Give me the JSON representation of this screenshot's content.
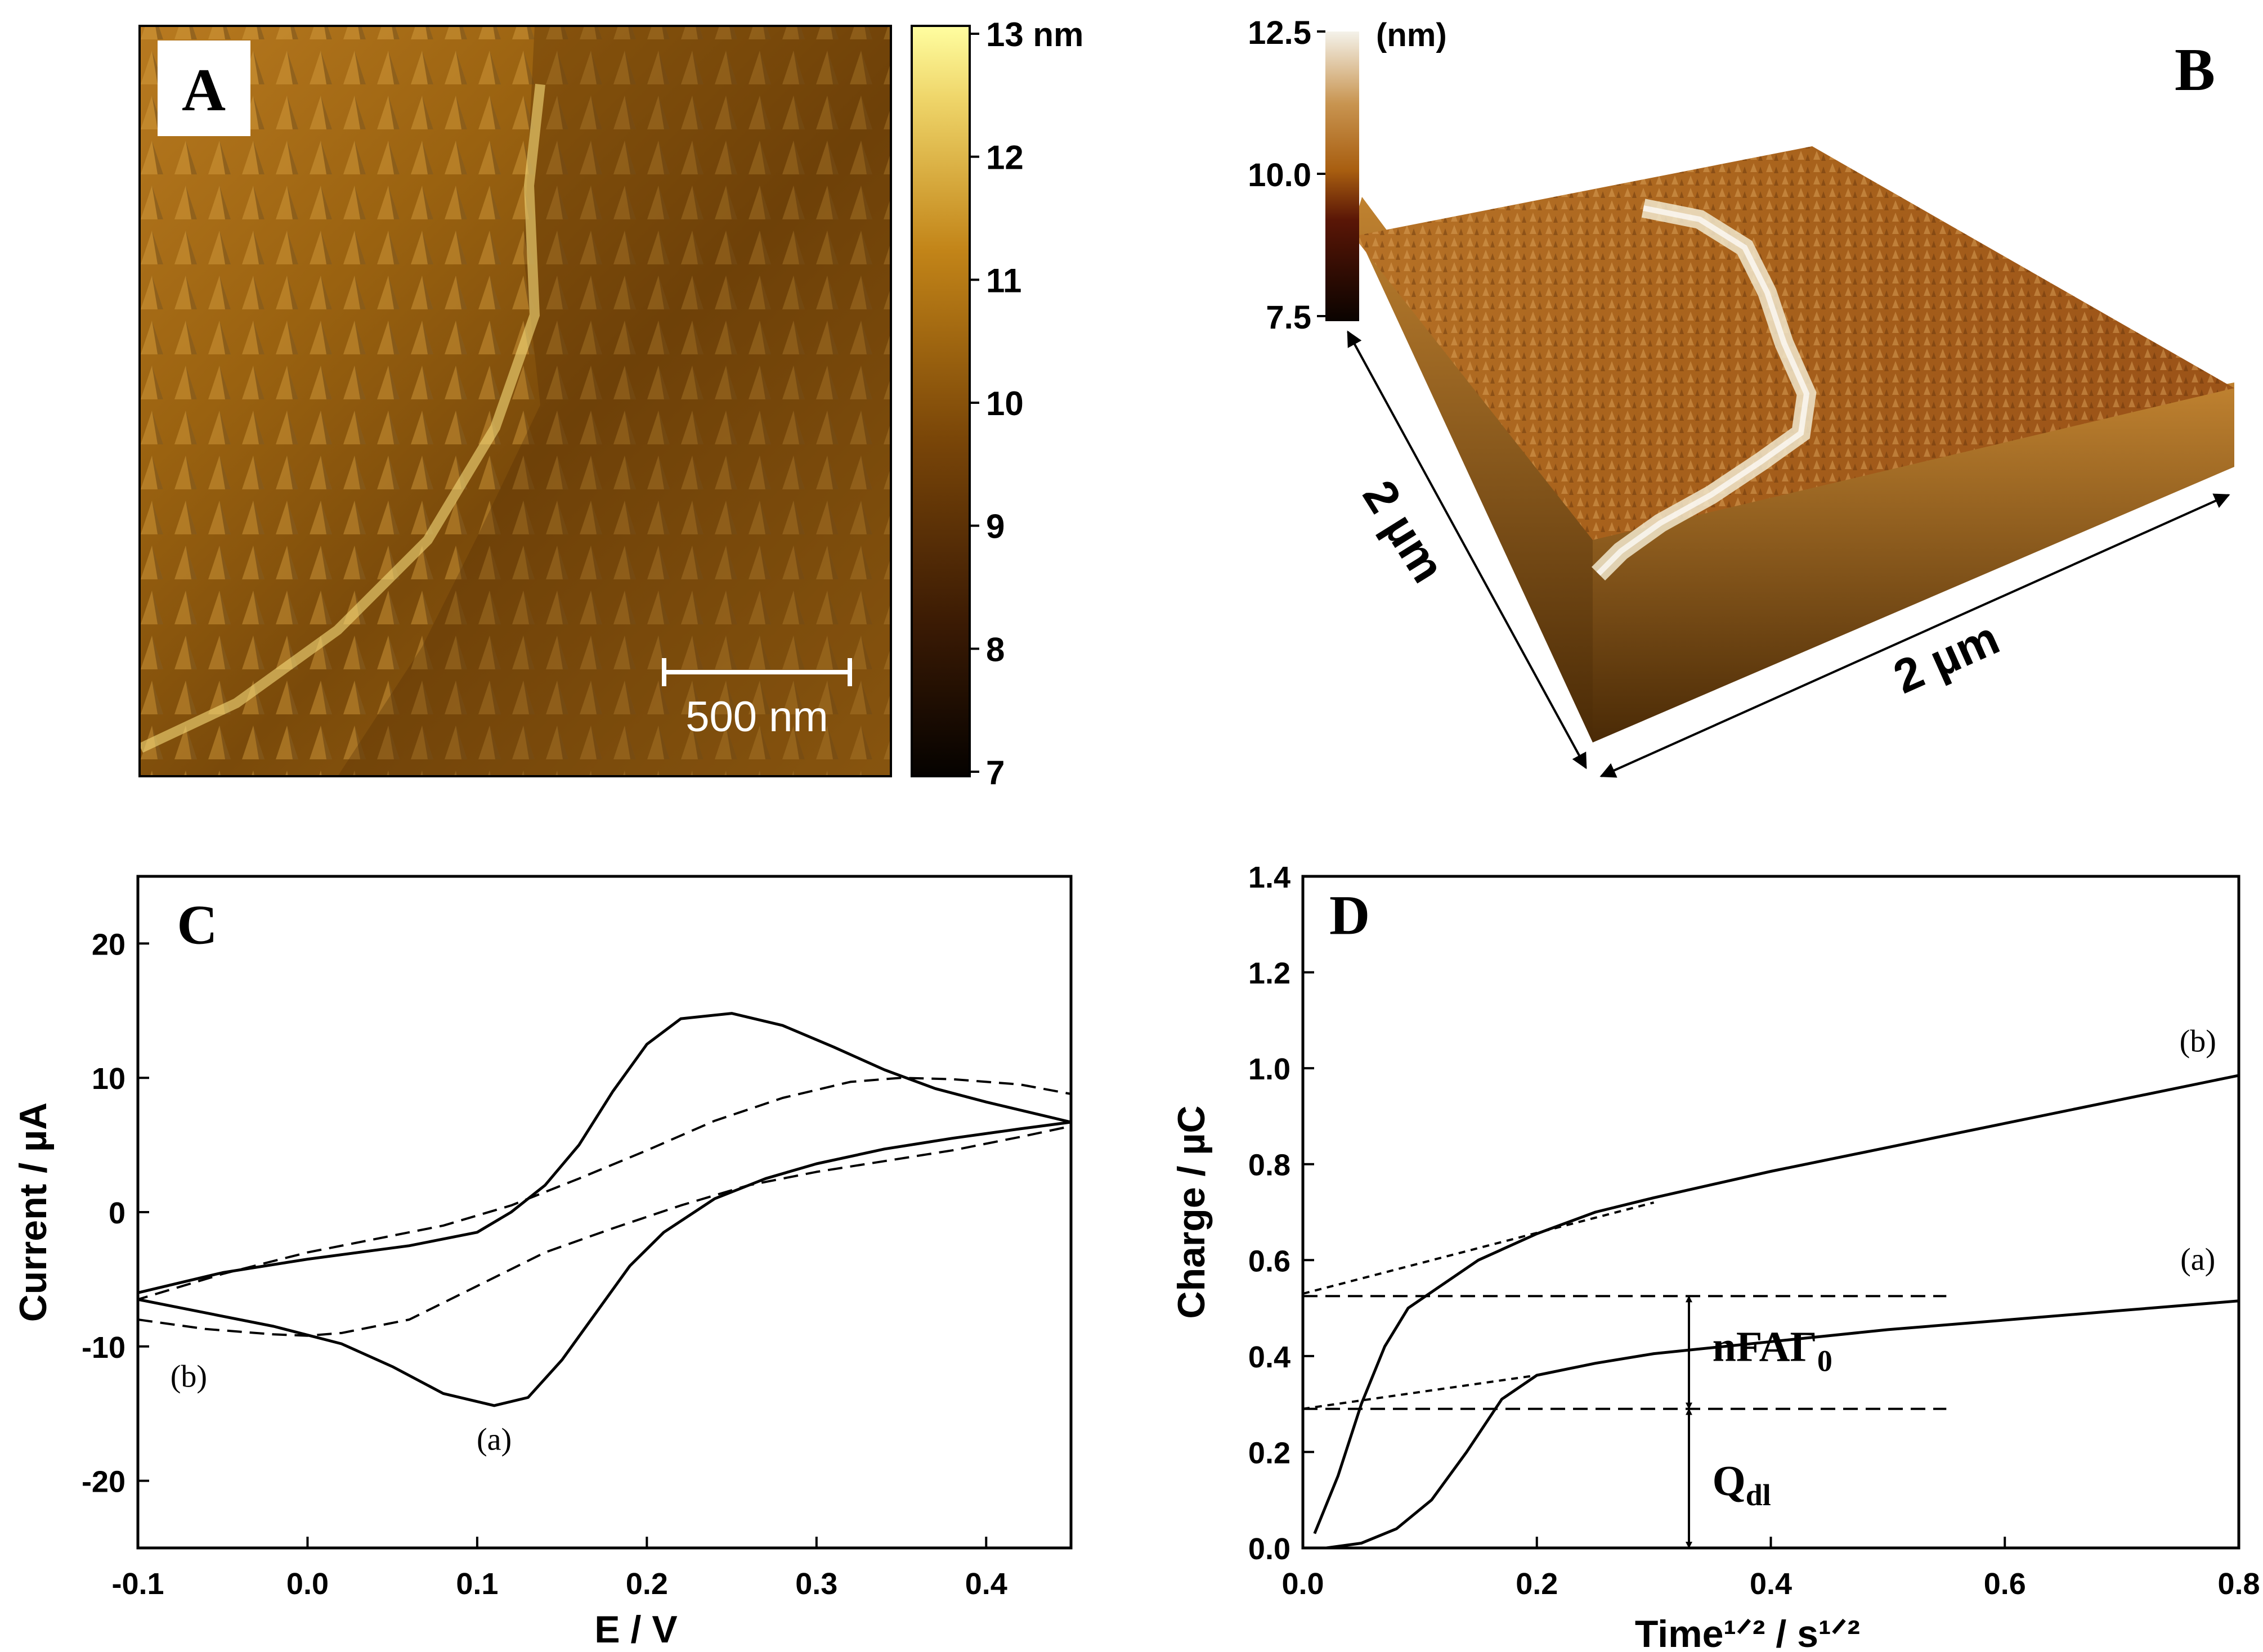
{
  "panels": {
    "a": {
      "label": "A",
      "colorbar_ticks": [
        "13 nm",
        "12",
        "11",
        "10",
        "9",
        "8",
        "7"
      ],
      "scalebar_label": "500 nm"
    },
    "b": {
      "label": "B",
      "colorbar_unit": "(nm)",
      "colorbar_ticks": [
        "12.5",
        "10.0",
        "7.5"
      ],
      "edge_label_left": "2 µm",
      "edge_label_right": "2 µm"
    }
  },
  "chart_data": [
    {
      "panel": "C",
      "type": "line",
      "xlabel": "E / V",
      "ylabel": "Current / µA",
      "xlim": [
        -0.1,
        0.45
      ],
      "ylim": [
        -25,
        25
      ],
      "xticks": [
        -0.1,
        0.0,
        0.1,
        0.2,
        0.3,
        0.4
      ],
      "xtick_labels": [
        "-0.1",
        "0.0",
        "0.1",
        "0.2",
        "0.3",
        "0.4"
      ],
      "yticks": [
        -20,
        -10,
        0,
        10,
        20
      ],
      "ytick_labels": [
        "-20",
        "-10",
        "0",
        "10",
        "20"
      ],
      "series": [
        {
          "name": "(a)",
          "style": "solid",
          "points": [
            [
              -0.1,
              -6.5
            ],
            [
              -0.06,
              -7.5
            ],
            [
              -0.02,
              -8.5
            ],
            [
              0.02,
              -9.8
            ],
            [
              0.05,
              -11.5
            ],
            [
              0.08,
              -13.5
            ],
            [
              0.11,
              -14.4
            ],
            [
              0.13,
              -13.8
            ],
            [
              0.15,
              -11
            ],
            [
              0.17,
              -7.5
            ],
            [
              0.19,
              -4
            ],
            [
              0.21,
              -1.5
            ],
            [
              0.24,
              1
            ],
            [
              0.27,
              2.5
            ],
            [
              0.3,
              3.6
            ],
            [
              0.34,
              4.7
            ],
            [
              0.38,
              5.5
            ],
            [
              0.42,
              6.2
            ],
            [
              0.45,
              6.7
            ],
            [
              0.43,
              7.3
            ],
            [
              0.4,
              8.2
            ],
            [
              0.37,
              9.2
            ],
            [
              0.34,
              10.6
            ],
            [
              0.31,
              12.3
            ],
            [
              0.28,
              13.9
            ],
            [
              0.25,
              14.8
            ],
            [
              0.22,
              14.4
            ],
            [
              0.2,
              12.5
            ],
            [
              0.18,
              9
            ],
            [
              0.16,
              5
            ],
            [
              0.14,
              2
            ],
            [
              0.12,
              0
            ],
            [
              0.1,
              -1.5
            ],
            [
              0.06,
              -2.5
            ],
            [
              0.0,
              -3.5
            ],
            [
              -0.05,
              -4.5
            ],
            [
              -0.1,
              -6
            ]
          ]
        },
        {
          "name": "(b)",
          "style": "dashed",
          "points": [
            [
              -0.1,
              -8
            ],
            [
              -0.06,
              -8.7
            ],
            [
              -0.02,
              -9.1
            ],
            [
              0.0,
              -9.2
            ],
            [
              0.02,
              -9
            ],
            [
              0.06,
              -8
            ],
            [
              0.1,
              -5.5
            ],
            [
              0.14,
              -3
            ],
            [
              0.18,
              -1.2
            ],
            [
              0.22,
              0.5
            ],
            [
              0.26,
              2
            ],
            [
              0.3,
              3
            ],
            [
              0.34,
              3.8
            ],
            [
              0.38,
              4.6
            ],
            [
              0.42,
              5.6
            ],
            [
              0.45,
              6.4
            ],
            [
              0.45,
              8.8
            ],
            [
              0.42,
              9.5
            ],
            [
              0.38,
              9.9
            ],
            [
              0.35,
              10
            ],
            [
              0.32,
              9.7
            ],
            [
              0.28,
              8.5
            ],
            [
              0.24,
              6.8
            ],
            [
              0.2,
              4.6
            ],
            [
              0.16,
              2.5
            ],
            [
              0.12,
              0.5
            ],
            [
              0.08,
              -1
            ],
            [
              0.04,
              -2
            ],
            [
              0.0,
              -3
            ],
            [
              -0.05,
              -4.6
            ],
            [
              -0.1,
              -6.5
            ]
          ]
        }
      ],
      "annotations": [
        {
          "text": "C",
          "x": -0.065,
          "y": 20,
          "font": "serif-bold"
        },
        {
          "text": "(b)",
          "x": -0.07,
          "y": -13,
          "font": "serif"
        },
        {
          "text": "(a)",
          "x": 0.11,
          "y": -17.7,
          "font": "serif"
        }
      ]
    },
    {
      "panel": "D",
      "type": "line",
      "xlabel": "Time¹ᐟ² / s¹ᐟ²",
      "ylabel": "Charge / µC",
      "xlim": [
        0.0,
        0.8
      ],
      "ylim": [
        0.0,
        1.4
      ],
      "xticks": [
        0.0,
        0.2,
        0.4,
        0.6,
        0.8
      ],
      "xtick_labels": [
        "0.0",
        "0.2",
        "0.4",
        "0.6",
        "0.8"
      ],
      "yticks": [
        0.0,
        0.2,
        0.4,
        0.6,
        0.8,
        1.0,
        1.2,
        1.4
      ],
      "ytick_labels": [
        "0.0",
        "0.2",
        "0.4",
        "0.6",
        "0.8",
        "1.0",
        "1.2",
        "1.4"
      ],
      "series": [
        {
          "name": "(a)",
          "style": "solid",
          "points": [
            [
              0.02,
              0.0
            ],
            [
              0.05,
              0.01
            ],
            [
              0.08,
              0.04
            ],
            [
              0.11,
              0.1
            ],
            [
              0.14,
              0.2
            ],
            [
              0.17,
              0.31
            ],
            [
              0.2,
              0.36
            ],
            [
              0.25,
              0.385
            ],
            [
              0.3,
              0.405
            ],
            [
              0.4,
              0.43
            ],
            [
              0.5,
              0.455
            ],
            [
              0.6,
              0.475
            ],
            [
              0.7,
              0.495
            ],
            [
              0.8,
              0.515
            ]
          ]
        },
        {
          "name": "(b)",
          "style": "solid",
          "points": [
            [
              0.01,
              0.03
            ],
            [
              0.03,
              0.15
            ],
            [
              0.05,
              0.3
            ],
            [
              0.07,
              0.42
            ],
            [
              0.09,
              0.5
            ],
            [
              0.12,
              0.55
            ],
            [
              0.15,
              0.6
            ],
            [
              0.2,
              0.655
            ],
            [
              0.25,
              0.7
            ],
            [
              0.3,
              0.73
            ],
            [
              0.4,
              0.785
            ],
            [
              0.5,
              0.835
            ],
            [
              0.6,
              0.885
            ],
            [
              0.7,
              0.935
            ],
            [
              0.8,
              0.985
            ]
          ]
        },
        {
          "name": "(b) extrapolation",
          "style": "dotted",
          "points": [
            [
              0.0,
              0.53
            ],
            [
              0.3,
              0.72
            ]
          ]
        },
        {
          "name": "(a) extrapolation",
          "style": "dotted",
          "points": [
            [
              0.0,
              0.29
            ],
            [
              0.2,
              0.36
            ]
          ]
        },
        {
          "name": "upper baseline",
          "style": "dashed",
          "points": [
            [
              0.0,
              0.525
            ],
            [
              0.55,
              0.525
            ]
          ]
        },
        {
          "name": "lower baseline",
          "style": "dashed",
          "points": [
            [
              0.0,
              0.29
            ],
            [
              0.55,
              0.29
            ]
          ]
        }
      ],
      "arrows": [
        {
          "x": 0.33,
          "y1": 0.29,
          "y2": 0.525,
          "label": "nFAΓ",
          "label_sub": "0",
          "label_x": 0.35,
          "label_y": 0.39
        },
        {
          "x": 0.33,
          "y1": 0.0,
          "y2": 0.29,
          "label": "Q",
          "label_sub": "dl",
          "label_x": 0.35,
          "label_y": 0.11
        }
      ],
      "annotations": [
        {
          "text": "D",
          "x": 0.04,
          "y": 1.28,
          "font": "serif-bold"
        },
        {
          "text": "(b)",
          "x": 0.765,
          "y": 1.035,
          "font": "serif"
        },
        {
          "text": "(a)",
          "x": 0.765,
          "y": 0.58,
          "font": "serif"
        }
      ]
    }
  ]
}
